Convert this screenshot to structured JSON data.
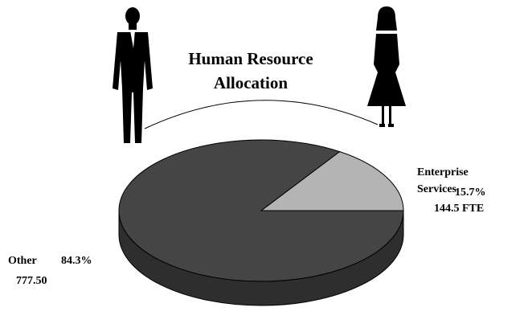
{
  "chart_data": {
    "type": "pie",
    "title": "Human Resource Allocation",
    "categories": [
      "Enterprise Services",
      "Other"
    ],
    "values": [
      15.7,
      84.3
    ],
    "value_labels": [
      "15.7%",
      "84.3%"
    ],
    "counts": [
      144.5,
      777.5
    ],
    "count_labels": [
      "144.5 FTE",
      "777.50"
    ],
    "colors": [
      "#b4b4b4",
      "#454545"
    ]
  }
}
